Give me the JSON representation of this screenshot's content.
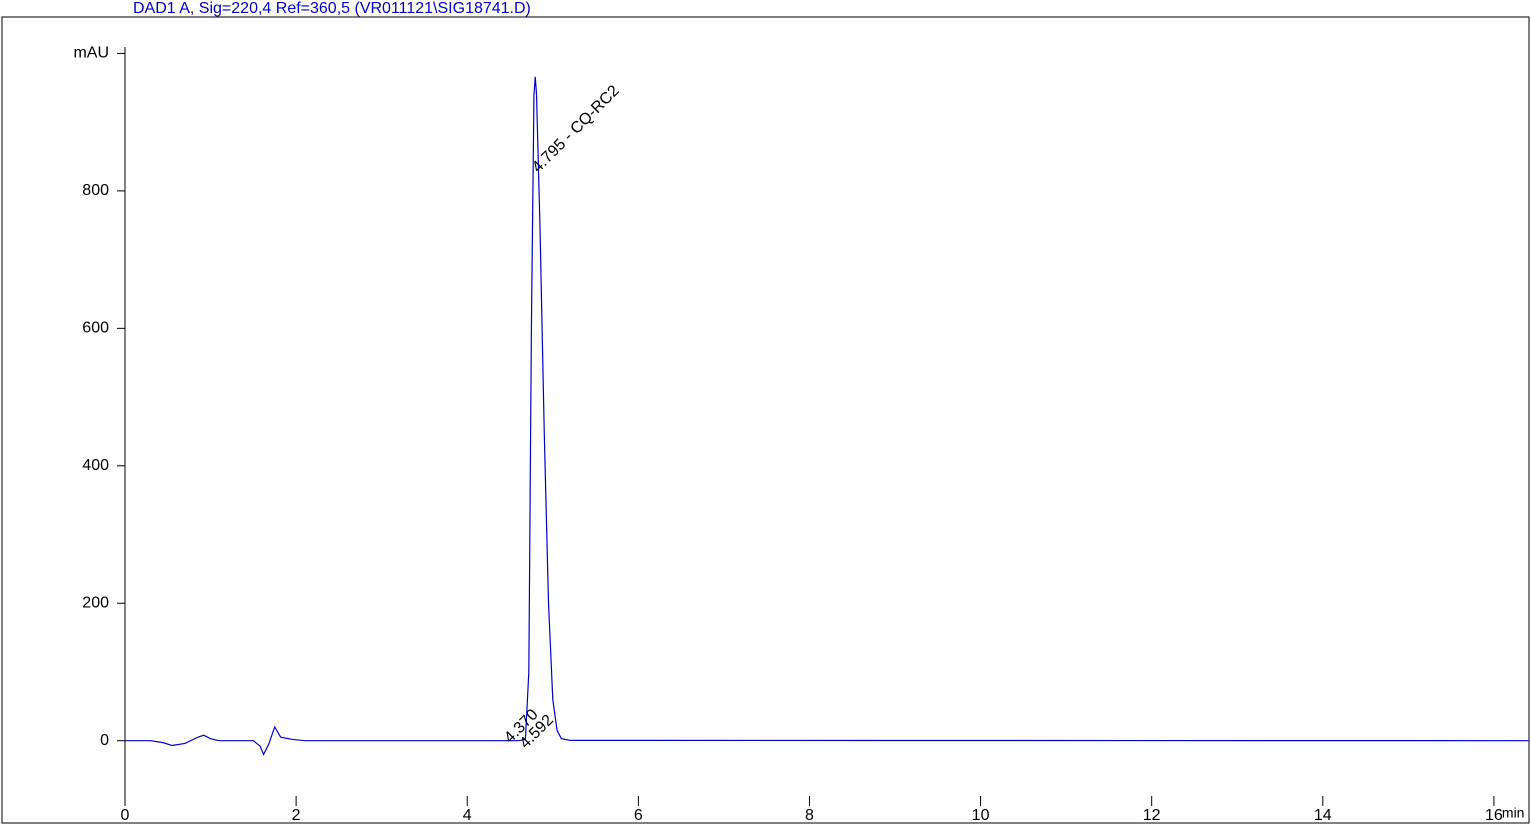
{
  "chart_data": {
    "type": "line",
    "title": "DAD1 A, Sig=220,4 Ref=360,5 (VR011121\\SIG18741.D)",
    "x_label": "min",
    "y_label": "mAU",
    "xlim": [
      0,
      16.41
    ],
    "ylim": [
      -95,
      1053
    ],
    "xticks": [
      0,
      2,
      4,
      6,
      8,
      10,
      12,
      14,
      16
    ],
    "yticks": [
      0,
      200,
      400,
      600,
      800
    ],
    "series": [
      {
        "name": "DAD1 A",
        "color": "#0000cc",
        "x": [
          0,
          0.3,
          0.45,
          0.55,
          0.7,
          0.85,
          0.92,
          1.0,
          1.1,
          1.5,
          1.58,
          1.62,
          1.68,
          1.75,
          1.82,
          1.95,
          2.1,
          4.6,
          4.68,
          4.72,
          4.75,
          4.78,
          4.795,
          4.81,
          4.85,
          4.9,
          4.95,
          5.0,
          5.05,
          5.1,
          5.2,
          16.41
        ],
        "values": [
          0,
          0,
          -3,
          -7,
          -4,
          5,
          8,
          3,
          0,
          0,
          -8,
          -20,
          -5,
          20,
          5,
          2,
          0,
          0,
          2,
          100,
          600,
          940,
          966,
          940,
          750,
          450,
          200,
          60,
          15,
          3,
          0.5,
          0
        ]
      }
    ],
    "annotations": [
      {
        "text": "4.795 - CQ-RC2",
        "x": 4.795,
        "y": 830
      },
      {
        "text": "4.370",
        "x": 4.47,
        "y": 0
      },
      {
        "text": "4.592",
        "x": 4.65,
        "y": -8
      }
    ]
  }
}
